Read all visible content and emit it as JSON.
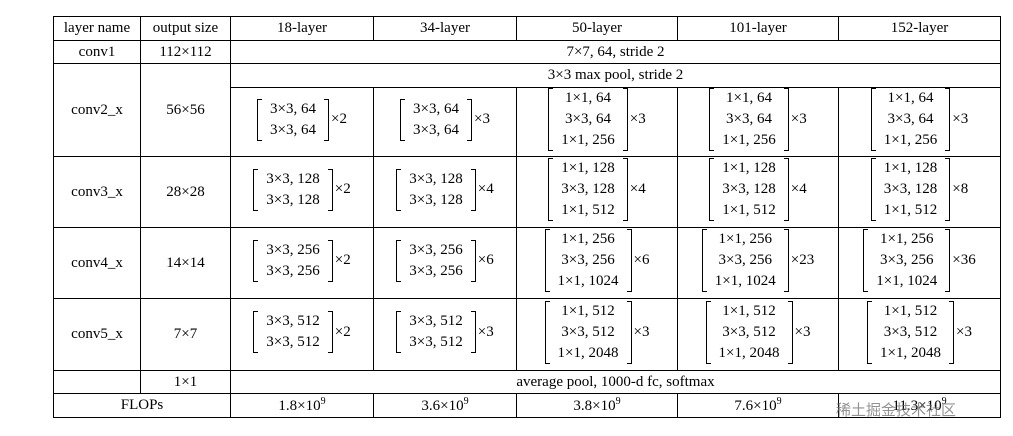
{
  "table": {
    "header": [
      "layer name",
      "output size",
      "18-layer",
      "34-layer",
      "50-layer",
      "101-layer",
      "152-layer"
    ],
    "rows": [
      {
        "name": "conv1",
        "output": "112×112",
        "spec": "7×7, 64, stride 2"
      },
      {
        "name": "conv2_x",
        "output": "56×56",
        "spec": "3×3 max pool, stride 2",
        "blocks": [
          {
            "lines": [
              "3×3, 64",
              "3×3, 64"
            ],
            "times": "×2"
          },
          {
            "lines": [
              "3×3, 64",
              "3×3, 64"
            ],
            "times": "×3"
          },
          {
            "lines": [
              "1×1, 64",
              "3×3, 64",
              "1×1, 256"
            ],
            "times": "×3"
          },
          {
            "lines": [
              "1×1, 64",
              "3×3, 64",
              "1×1, 256"
            ],
            "times": "×3"
          },
          {
            "lines": [
              "1×1, 64",
              "3×3, 64",
              "1×1, 256"
            ],
            "times": "×3"
          }
        ]
      },
      {
        "name": "conv3_x",
        "output": "28×28",
        "blocks": [
          {
            "lines": [
              "3×3, 128",
              "3×3, 128"
            ],
            "times": "×2"
          },
          {
            "lines": [
              "3×3, 128",
              "3×3, 128"
            ],
            "times": "×4"
          },
          {
            "lines": [
              "1×1, 128",
              "3×3, 128",
              "1×1, 512"
            ],
            "times": "×4"
          },
          {
            "lines": [
              "1×1, 128",
              "3×3, 128",
              "1×1, 512"
            ],
            "times": "×4"
          },
          {
            "lines": [
              "1×1, 128",
              "3×3, 128",
              "1×1, 512"
            ],
            "times": "×8"
          }
        ]
      },
      {
        "name": "conv4_x",
        "output": "14×14",
        "blocks": [
          {
            "lines": [
              "3×3, 256",
              "3×3, 256"
            ],
            "times": "×2"
          },
          {
            "lines": [
              "3×3, 256",
              "3×3, 256"
            ],
            "times": "×6"
          },
          {
            "lines": [
              "1×1, 256",
              "3×3, 256",
              "1×1, 1024"
            ],
            "times": "×6"
          },
          {
            "lines": [
              "1×1, 256",
              "3×3, 256",
              "1×1, 1024"
            ],
            "times": "×23"
          },
          {
            "lines": [
              "1×1, 256",
              "3×3, 256",
              "1×1, 1024"
            ],
            "times": "×36"
          }
        ]
      },
      {
        "name": "conv5_x",
        "output": "7×7",
        "blocks": [
          {
            "lines": [
              "3×3, 512",
              "3×3, 512"
            ],
            "times": "×2"
          },
          {
            "lines": [
              "3×3, 512",
              "3×3, 512"
            ],
            "times": "×3"
          },
          {
            "lines": [
              "1×1, 512",
              "3×3, 512",
              "1×1, 2048"
            ],
            "times": "×3"
          },
          {
            "lines": [
              "1×1, 512",
              "3×3, 512",
              "1×1, 2048"
            ],
            "times": "×3"
          },
          {
            "lines": [
              "1×1, 512",
              "3×3, 512",
              "1×1, 2048"
            ],
            "times": "×3"
          }
        ]
      },
      {
        "output": "1×1",
        "spec": "average pool, 1000-d fc, softmax"
      }
    ],
    "flops": {
      "label": "FLOPs",
      "values": [
        {
          "base": "1.8×10",
          "exp": "9"
        },
        {
          "base": "3.6×10",
          "exp": "9"
        },
        {
          "base": "3.8×10",
          "exp": "9"
        },
        {
          "base": "7.6×10",
          "exp": "9"
        },
        {
          "base": "11.3×10",
          "exp": "9"
        }
      ]
    }
  },
  "watermark": "稀土掘金技术社区"
}
